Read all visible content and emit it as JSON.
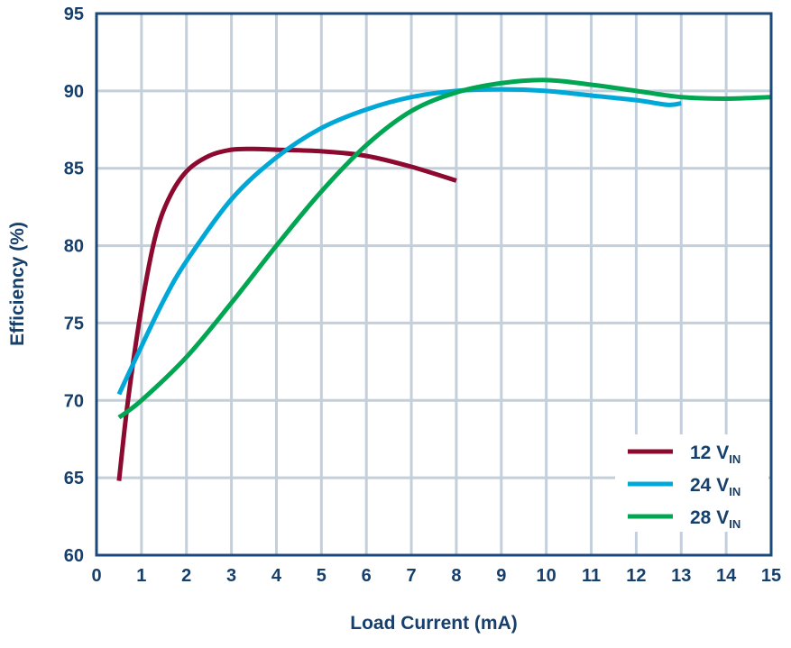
{
  "chart_data": {
    "type": "line",
    "title": "",
    "xlabel": "Load Current (mA)",
    "ylabel": "Efficiency (%)",
    "xlim": [
      0,
      15
    ],
    "ylim": [
      60,
      95
    ],
    "xticks": [
      0,
      1,
      2,
      3,
      4,
      5,
      6,
      7,
      8,
      9,
      10,
      11,
      12,
      13,
      14,
      15
    ],
    "yticks": [
      60,
      65,
      70,
      75,
      80,
      85,
      90,
      95
    ],
    "grid": true,
    "legend_position": "bottom-right",
    "colors": {
      "axis": "#1b4a78",
      "grid": "#c3cfdb",
      "text": "#163f6b"
    },
    "series": [
      {
        "name": "12 V",
        "subscript": "IN",
        "color": "#8c0a2f",
        "x": [
          0.5,
          0.7,
          1,
          1.3,
          1.6,
          2,
          2.5,
          3,
          3.5,
          4,
          5,
          6,
          7,
          8
        ],
        "y": [
          64.8,
          70,
          76,
          80.5,
          83,
          84.8,
          85.8,
          86.2,
          86.25,
          86.2,
          86.1,
          85.8,
          85.1,
          84.2
        ]
      },
      {
        "name": "24 V",
        "subscript": "IN",
        "color": "#00a8d8",
        "x": [
          0.5,
          1,
          1.5,
          2,
          3,
          4,
          5,
          6,
          7,
          8,
          9,
          10,
          11,
          12,
          12.7,
          13
        ],
        "y": [
          70.4,
          73.5,
          76.5,
          79,
          83,
          85.7,
          87.6,
          88.8,
          89.6,
          90,
          90.1,
          90,
          89.7,
          89.4,
          89.1,
          89.2
        ]
      },
      {
        "name": "28 V",
        "subscript": "IN",
        "color": "#00a651",
        "x": [
          0.5,
          1,
          2,
          3,
          4,
          5,
          6,
          7,
          8,
          9,
          10,
          11,
          12,
          13,
          14,
          15
        ],
        "y": [
          68.9,
          70,
          72.8,
          76.3,
          80,
          83.5,
          86.5,
          88.7,
          89.9,
          90.5,
          90.7,
          90.4,
          90,
          89.6,
          89.5,
          89.6
        ]
      }
    ]
  }
}
